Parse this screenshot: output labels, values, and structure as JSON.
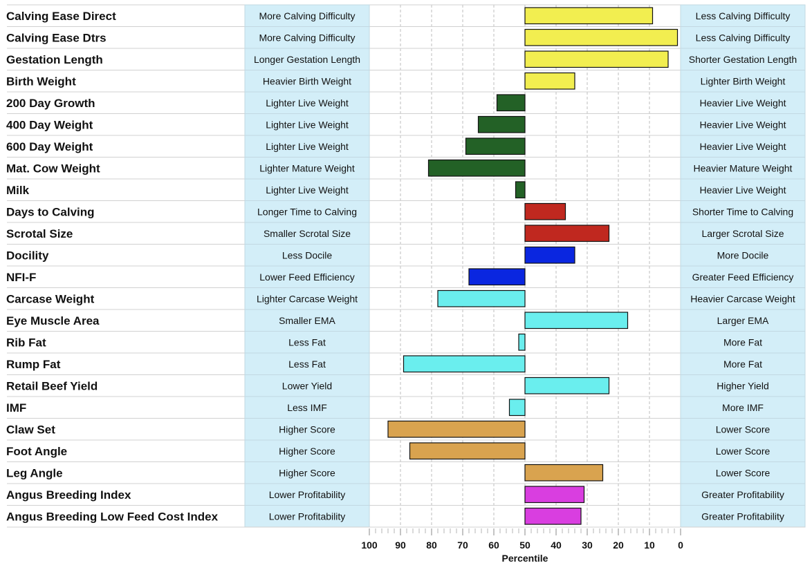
{
  "colors": {
    "box_fill": "#d3eef8",
    "box_stroke": "#c2d8e2",
    "row_line": "#d0d0d0",
    "grid": "#bdbdbd",
    "calving": "#f2ee50",
    "growth": "#236126",
    "fertility": "#c0281f",
    "temperament": "#0a26e0",
    "carcase": "#6aeeee",
    "structure": "#d9a34f",
    "index": "#d93ee0"
  },
  "chart_data": {
    "type": "bar",
    "orientation": "horizontal",
    "baseline": 50,
    "xlim": [
      100,
      0
    ],
    "xlabel": "Percentile",
    "xticks": [
      100,
      90,
      80,
      70,
      60,
      50,
      40,
      30,
      20,
      10,
      0
    ],
    "grid": true,
    "categories": [
      {
        "trait": "Calving Ease Direct",
        "low_label": "More Calving Difficulty",
        "high_label": "Less Calving Difficulty",
        "value": 9,
        "group": "calving"
      },
      {
        "trait": "Calving Ease Dtrs",
        "low_label": "More Calving Difficulty",
        "high_label": "Less Calving Difficulty",
        "value": 1,
        "group": "calving"
      },
      {
        "trait": "Gestation Length",
        "low_label": "Longer Gestation Length",
        "high_label": "Shorter Gestation Length",
        "value": 4,
        "group": "calving"
      },
      {
        "trait": "Birth Weight",
        "low_label": "Heavier Birth Weight",
        "high_label": "Lighter Birth Weight",
        "value": 34,
        "group": "calving"
      },
      {
        "trait": "200 Day Growth",
        "low_label": "Lighter Live Weight",
        "high_label": "Heavier Live Weight",
        "value": 59,
        "group": "growth"
      },
      {
        "trait": "400 Day Weight",
        "low_label": "Lighter Live Weight",
        "high_label": "Heavier Live Weight",
        "value": 65,
        "group": "growth"
      },
      {
        "trait": "600 Day Weight",
        "low_label": "Lighter Live Weight",
        "high_label": "Heavier Live Weight",
        "value": 69,
        "group": "growth"
      },
      {
        "trait": "Mat. Cow Weight",
        "low_label": "Lighter Mature Weight",
        "high_label": "Heavier Mature Weight",
        "value": 81,
        "group": "growth"
      },
      {
        "trait": "Milk",
        "low_label": "Lighter Live Weight",
        "high_label": "Heavier Live Weight",
        "value": 53,
        "group": "growth"
      },
      {
        "trait": "Days to Calving",
        "low_label": "Longer Time to Calving",
        "high_label": "Shorter Time to Calving",
        "value": 37,
        "group": "fertility"
      },
      {
        "trait": "Scrotal Size",
        "low_label": "Smaller Scrotal Size",
        "high_label": "Larger Scrotal Size",
        "value": 23,
        "group": "fertility"
      },
      {
        "trait": "Docility",
        "low_label": "Less Docile",
        "high_label": "More Docile",
        "value": 34,
        "group": "temperament"
      },
      {
        "trait": "NFI-F",
        "low_label": "Lower Feed Efficiency",
        "high_label": "Greater Feed Efficiency",
        "value": 68,
        "group": "temperament"
      },
      {
        "trait": "Carcase Weight",
        "low_label": "Lighter Carcase Weight",
        "high_label": "Heavier Carcase Weight",
        "value": 78,
        "group": "carcase"
      },
      {
        "trait": "Eye Muscle Area",
        "low_label": "Smaller EMA",
        "high_label": "Larger EMA",
        "value": 17,
        "group": "carcase"
      },
      {
        "trait": "Rib Fat",
        "low_label": "Less Fat",
        "high_label": "More Fat",
        "value": 52,
        "group": "carcase"
      },
      {
        "trait": "Rump Fat",
        "low_label": "Less Fat",
        "high_label": "More Fat",
        "value": 89,
        "group": "carcase"
      },
      {
        "trait": "Retail Beef Yield",
        "low_label": "Lower Yield",
        "high_label": "Higher Yield",
        "value": 23,
        "group": "carcase"
      },
      {
        "trait": "IMF",
        "low_label": "Less IMF",
        "high_label": "More IMF",
        "value": 55,
        "group": "carcase"
      },
      {
        "trait": "Claw Set",
        "low_label": "Higher Score",
        "high_label": "Lower Score",
        "value": 94,
        "group": "structure"
      },
      {
        "trait": "Foot Angle",
        "low_label": "Higher Score",
        "high_label": "Lower Score",
        "value": 87,
        "group": "structure"
      },
      {
        "trait": "Leg Angle",
        "low_label": "Higher Score",
        "high_label": "Lower Score",
        "value": 25,
        "group": "structure"
      },
      {
        "trait": "Angus Breeding Index",
        "low_label": "Lower Profitability",
        "high_label": "Greater Profitability",
        "value": 31,
        "group": "index"
      },
      {
        "trait": "Angus Breeding Low Feed Cost Index",
        "low_label": "Lower Profitability",
        "high_label": "Greater Profitability",
        "value": 32,
        "group": "index"
      }
    ]
  }
}
